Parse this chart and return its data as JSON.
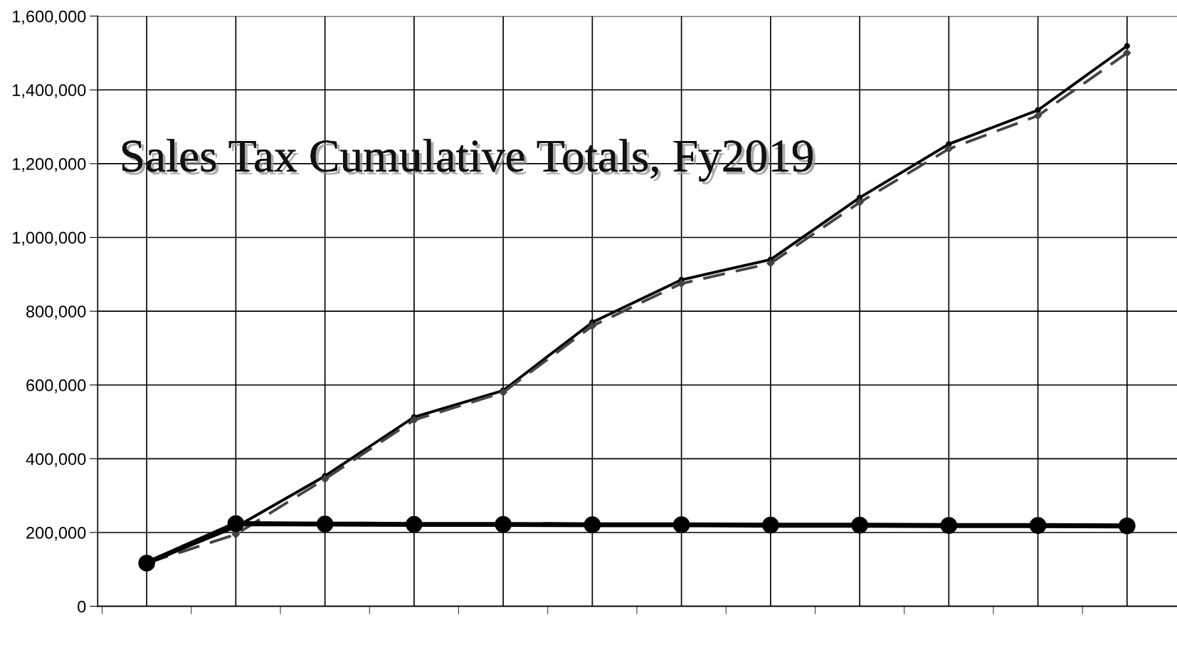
{
  "chart_data": {
    "type": "line",
    "title": "Sales Tax Cumulative Totals, Fy2019",
    "categories": [
      null,
      null,
      null,
      null,
      null,
      null,
      null,
      null,
      null,
      null,
      null,
      null
    ],
    "series": [
      {
        "color": "#000000",
        "marker": "circle",
        "line_style": "solid",
        "values": [
          117000,
          215000,
          353000,
          513000,
          585000,
          770000,
          885000,
          940000,
          1108000,
          1253000,
          1345000,
          1519000
        ]
      },
      {
        "color": "#444444",
        "marker": "diamond",
        "line_style": "dashed",
        "values": [
          117000,
          195000,
          345000,
          505000,
          580000,
          760000,
          875000,
          930000,
          1095000,
          1240000,
          1330000,
          1500000
        ]
      },
      {
        "color": "#000000",
        "marker": "circle",
        "line_style": "solid",
        "values": [
          117000,
          224000,
          223000,
          222000,
          222000,
          221000,
          221000,
          220000,
          220000,
          219000,
          219000,
          218000
        ]
      }
    ],
    "ylim": [
      0,
      1600000
    ],
    "yticks": [
      {
        "value": 0,
        "label": "0"
      },
      {
        "value": 200000,
        "label": "200,000"
      },
      {
        "value": 400000,
        "label": "400,000"
      },
      {
        "value": 600000,
        "label": "600,000"
      },
      {
        "value": 800000,
        "label": "800,000"
      },
      {
        "value": 1000000,
        "label": "1,000,000"
      },
      {
        "value": 1200000,
        "label": "1,200,000"
      },
      {
        "value": 1400000,
        "label": "1,400,000"
      },
      {
        "value": 1600000,
        "label": "1,600,000"
      }
    ],
    "grid": true,
    "legend": false
  }
}
